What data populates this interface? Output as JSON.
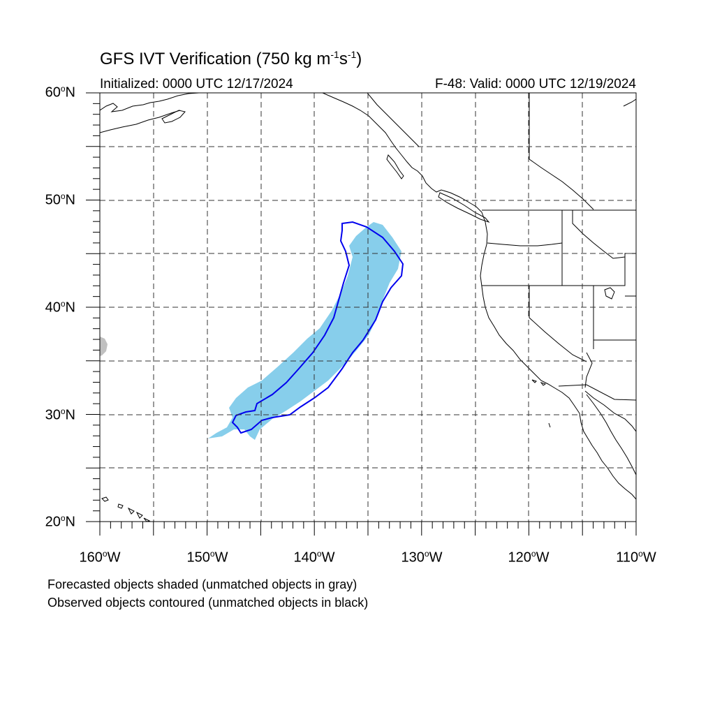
{
  "header": {
    "title_main": "GFS IVT Verification (750 kg m",
    "title_exp1": "-1",
    "title_mid": "s",
    "title_exp2": "-1",
    "title_end": ")",
    "init": "Initialized: 0000 UTC 12/17/2024",
    "valid": "F-48: Valid: 0000 UTC 12/19/2024"
  },
  "axes": {
    "lat_ticks": [
      {
        "value": "60",
        "suffix": "N"
      },
      {
        "value": "50",
        "suffix": "N"
      },
      {
        "value": "40",
        "suffix": "N"
      },
      {
        "value": "30",
        "suffix": "N"
      },
      {
        "value": "20",
        "suffix": "N"
      }
    ],
    "lon_ticks": [
      {
        "value": "160",
        "suffix": "W"
      },
      {
        "value": "150",
        "suffix": "W"
      },
      {
        "value": "140",
        "suffix": "W"
      },
      {
        "value": "130",
        "suffix": "W"
      },
      {
        "value": "120",
        "suffix": "W"
      },
      {
        "value": "110",
        "suffix": "W"
      }
    ],
    "lat_range": [
      20,
      60
    ],
    "lon_range": [
      -160,
      -110
    ],
    "degree_symbol": "o"
  },
  "legend": {
    "line1": "Forecasted objects shaded (unmatched objects in gray)",
    "line2": "Observed objects contoured (unmatched objects in black)"
  },
  "colors": {
    "forecast_matched": "#87ceeb",
    "forecast_unmatched": "#c0c0c0",
    "observed_matched": "#0000ee",
    "observed_unmatched": "#000000",
    "coastline": "#000000",
    "grid": "#000000"
  }
}
